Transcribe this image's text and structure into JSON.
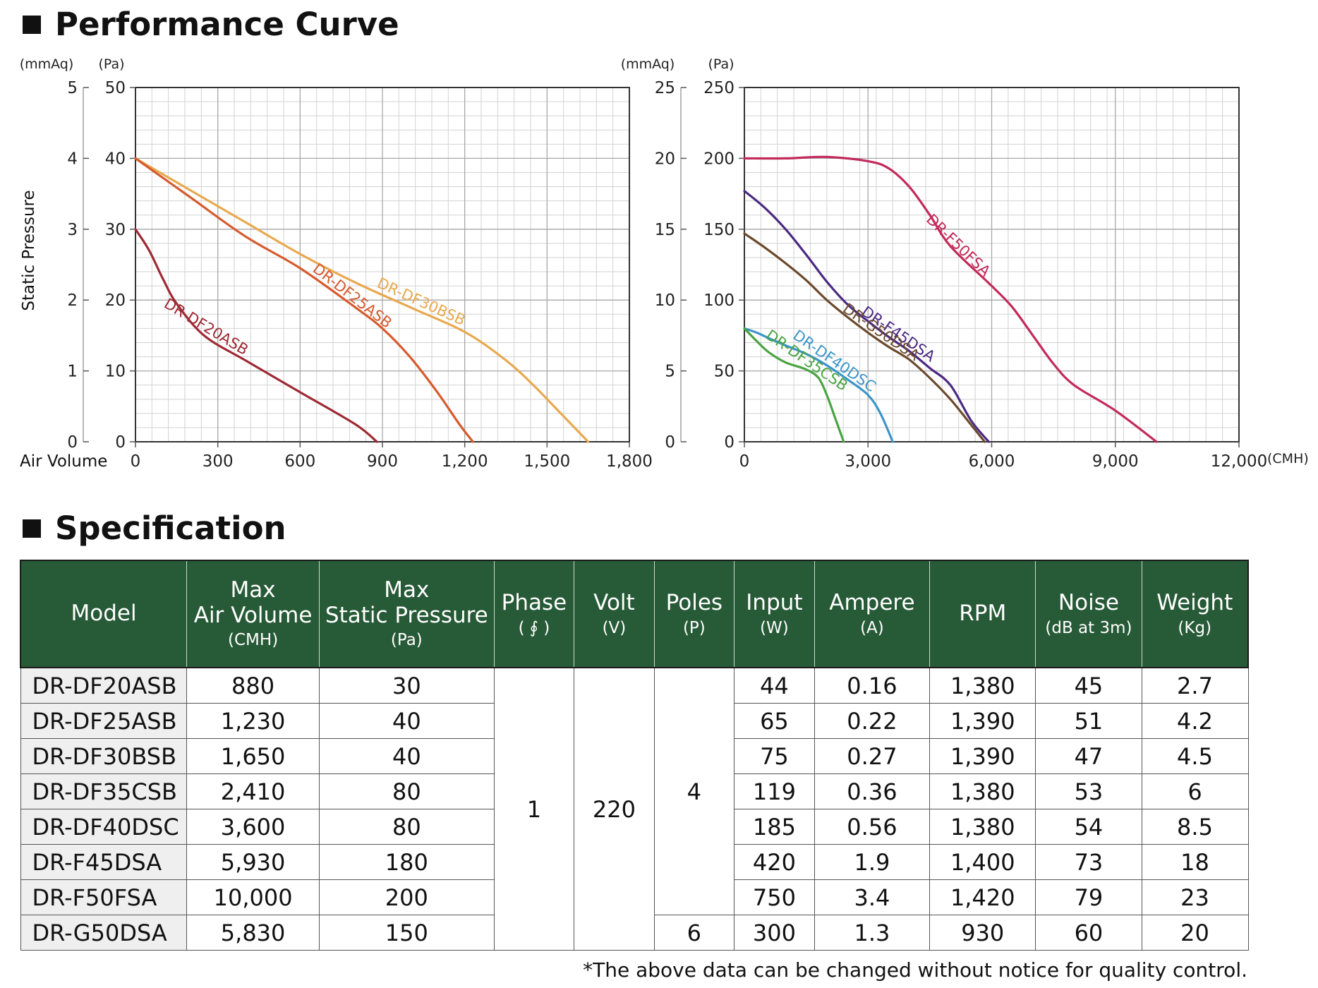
{
  "sections": {
    "performance_title": "Performance Curve",
    "spec_title": "Specification"
  },
  "chart_data": [
    {
      "type": "line",
      "title": "",
      "xlabel": "Air Volume",
      "ylabel": "Static Pressure",
      "y_units": [
        "(mmAq)",
        "(Pa)"
      ],
      "xlim": [
        0,
        1800
      ],
      "ylim": [
        0,
        50
      ],
      "x_ticks": [
        "0",
        "300",
        "600",
        "900",
        "1,200",
        "1,500",
        "1,800"
      ],
      "y_ticks_pa": [
        "0",
        "10",
        "20",
        "30",
        "40",
        "50"
      ],
      "y_ticks_mmaq": [
        "0",
        "1",
        "2",
        "3",
        "4",
        "5"
      ],
      "grid": true,
      "series": [
        {
          "name": "DR-DF30BSB",
          "color": "#e8a94f",
          "points": [
            [
              0,
              40
            ],
            [
              200,
              35.5
            ],
            [
              400,
              31
            ],
            [
              600,
              26.5
            ],
            [
              800,
              22.5
            ],
            [
              1000,
              19
            ],
            [
              1200,
              15.5
            ],
            [
              1350,
              11.5
            ],
            [
              1450,
              8
            ],
            [
              1550,
              4
            ],
            [
              1650,
              0
            ]
          ]
        },
        {
          "name": "DR-DF25ASB",
          "color": "#d65a2e",
          "points": [
            [
              0,
              40
            ],
            [
              200,
              34.5
            ],
            [
              400,
              29
            ],
            [
              600,
              24.5
            ],
            [
              800,
              19
            ],
            [
              900,
              16
            ],
            [
              1000,
              12
            ],
            [
              1100,
              7
            ],
            [
              1180,
              2.5
            ],
            [
              1230,
              0
            ]
          ]
        },
        {
          "name": "DR-DF20ASB",
          "color": "#9e2a34",
          "points": [
            [
              0,
              30
            ],
            [
              50,
              27
            ],
            [
              100,
              23
            ],
            [
              150,
              19.5
            ],
            [
              250,
              15
            ],
            [
              400,
              11.5
            ],
            [
              600,
              7
            ],
            [
              800,
              2.5
            ],
            [
              880,
              0
            ]
          ]
        }
      ]
    },
    {
      "type": "line",
      "title": "",
      "xlabel": "",
      "ylabel": "",
      "y_units": [
        "(mmAq)",
        "(Pa)"
      ],
      "x_unit": "(CMH)",
      "xlim": [
        0,
        12000
      ],
      "ylim": [
        0,
        250
      ],
      "x_ticks": [
        "0",
        "3,000",
        "6,000",
        "9,000",
        "12,000"
      ],
      "y_ticks_pa": [
        "0",
        "50",
        "100",
        "150",
        "200",
        "250"
      ],
      "y_ticks_mmaq": [
        "0",
        "5",
        "10",
        "15",
        "20",
        "25"
      ],
      "grid": true,
      "series": [
        {
          "name": "DR-F50FSA",
          "color": "#c22a5b",
          "points": [
            [
              0,
              200
            ],
            [
              1000,
              200
            ],
            [
              2000,
              201
            ],
            [
              3000,
              198
            ],
            [
              3500,
              193
            ],
            [
              4000,
              180
            ],
            [
              4500,
              160
            ],
            [
              5000,
              138
            ],
            [
              6000,
              110
            ],
            [
              6500,
              95
            ],
            [
              7000,
              75
            ],
            [
              7500,
              55
            ],
            [
              8000,
              40
            ],
            [
              9000,
              22
            ],
            [
              10000,
              0
            ]
          ]
        },
        {
          "name": "DR-F45DSA",
          "color": "#4b2a82",
          "points": [
            [
              0,
              177
            ],
            [
              500,
              165
            ],
            [
              1000,
              150
            ],
            [
              1500,
              132
            ],
            [
              2000,
              113
            ],
            [
              2500,
              97
            ],
            [
              3000,
              85
            ],
            [
              3500,
              74
            ],
            [
              4000,
              64
            ],
            [
              4500,
              52
            ],
            [
              5000,
              40
            ],
            [
              5500,
              15
            ],
            [
              5930,
              0
            ]
          ]
        },
        {
          "name": "DR-G50DSA",
          "color": "#6b4a2e",
          "points": [
            [
              0,
              147
            ],
            [
              500,
              137
            ],
            [
              1000,
              126
            ],
            [
              1500,
              114
            ],
            [
              2000,
              100
            ],
            [
              2500,
              88
            ],
            [
              3000,
              77
            ],
            [
              3500,
              67
            ],
            [
              4000,
              58
            ],
            [
              4500,
              45
            ],
            [
              5000,
              30
            ],
            [
              5500,
              12
            ],
            [
              5830,
              0
            ]
          ]
        },
        {
          "name": "DR-DF40DSC",
          "color": "#3d95c8",
          "points": [
            [
              0,
              80
            ],
            [
              300,
              77
            ],
            [
              600,
              73
            ],
            [
              1000,
              68
            ],
            [
              1500,
              62
            ],
            [
              2000,
              54
            ],
            [
              2500,
              44
            ],
            [
              3000,
              33
            ],
            [
              3300,
              20
            ],
            [
              3600,
              0
            ]
          ]
        },
        {
          "name": "DR-DF35CSB",
          "color": "#4aa343",
          "points": [
            [
              0,
              80
            ],
            [
              300,
              71
            ],
            [
              600,
              63
            ],
            [
              1000,
              56
            ],
            [
              1500,
              51
            ],
            [
              1800,
              45
            ],
            [
              2000,
              33
            ],
            [
              2200,
              17
            ],
            [
              2410,
              0
            ]
          ]
        }
      ]
    }
  ],
  "table": {
    "headers": [
      {
        "main": "Model",
        "unit": ""
      },
      {
        "main": "Max\nAir Volume",
        "unit": "(CMH)"
      },
      {
        "main": "Max\nStatic Pressure",
        "unit": "(Pa)"
      },
      {
        "main": "Phase",
        "unit": "( ∮ )"
      },
      {
        "main": "Volt",
        "unit": "(V)"
      },
      {
        "main": "Poles",
        "unit": "(P)"
      },
      {
        "main": "Input",
        "unit": "(W)"
      },
      {
        "main": "Ampere",
        "unit": "(A)"
      },
      {
        "main": "RPM",
        "unit": ""
      },
      {
        "main": "Noise",
        "unit": "(dB at 3m)"
      },
      {
        "main": "Weight",
        "unit": "(Kg)"
      }
    ],
    "phase": "1",
    "volt": "220",
    "poles_main": "4",
    "poles_last": "6",
    "rows": [
      {
        "model": "DR-DF20ASB",
        "air": "880",
        "pressure": "30",
        "input": "44",
        "ampere": "0.16",
        "rpm": "1,380",
        "noise": "45",
        "weight": "2.7"
      },
      {
        "model": "DR-DF25ASB",
        "air": "1,230",
        "pressure": "40",
        "input": "65",
        "ampere": "0.22",
        "rpm": "1,390",
        "noise": "51",
        "weight": "4.2"
      },
      {
        "model": "DR-DF30BSB",
        "air": "1,650",
        "pressure": "40",
        "input": "75",
        "ampere": "0.27",
        "rpm": "1,390",
        "noise": "47",
        "weight": "4.5"
      },
      {
        "model": "DR-DF35CSB",
        "air": "2,410",
        "pressure": "80",
        "input": "119",
        "ampere": "0.36",
        "rpm": "1,380",
        "noise": "53",
        "weight": "6"
      },
      {
        "model": "DR-DF40DSC",
        "air": "3,600",
        "pressure": "80",
        "input": "185",
        "ampere": "0.56",
        "rpm": "1,380",
        "noise": "54",
        "weight": "8.5"
      },
      {
        "model": "DR-F45DSA",
        "air": "5,930",
        "pressure": "180",
        "input": "420",
        "ampere": "1.9",
        "rpm": "1,400",
        "noise": "73",
        "weight": "18"
      },
      {
        "model": "DR-F50FSA",
        "air": "10,000",
        "pressure": "200",
        "input": "750",
        "ampere": "3.4",
        "rpm": "1,420",
        "noise": "79",
        "weight": "23"
      },
      {
        "model": "DR-G50DSA",
        "air": "5,830",
        "pressure": "150",
        "input": "300",
        "ampere": "1.3",
        "rpm": "930",
        "noise": "60",
        "weight": "20"
      }
    ]
  },
  "footnote": "*The above data can be changed without notice for quality control.",
  "colors": {
    "header_green": "#275a37",
    "model_bg": "#efefef",
    "grid": "#c9c9c9"
  }
}
